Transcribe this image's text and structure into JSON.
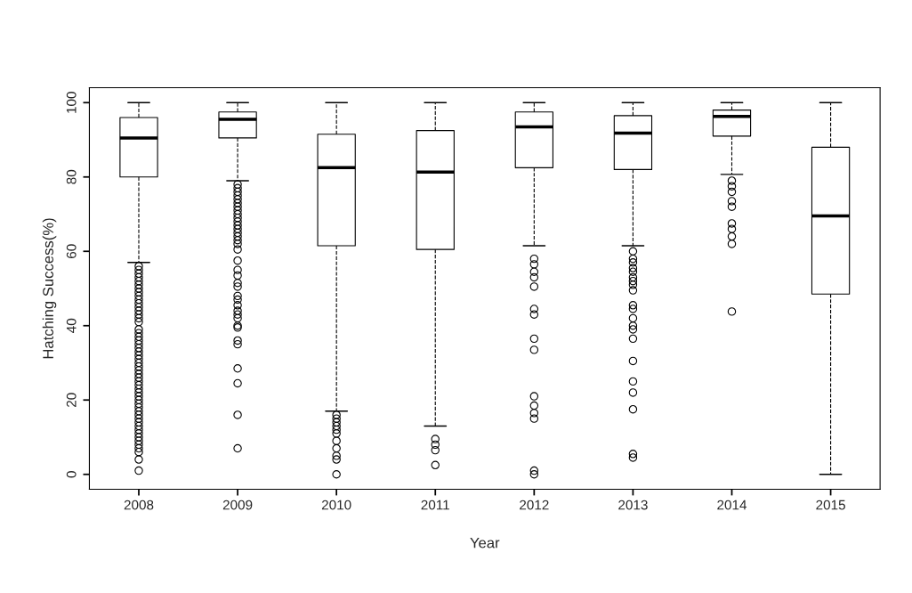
{
  "chart_data": {
    "type": "box",
    "xlabel": "Year",
    "ylabel": "Hatching Success(%)",
    "categories": [
      "2008",
      "2009",
      "2010",
      "2011",
      "2012",
      "2013",
      "2014",
      "2015"
    ],
    "ylim": [
      -4,
      104
    ],
    "yticks": [
      0,
      20,
      40,
      60,
      80,
      100
    ],
    "grid": false,
    "boxes": [
      {
        "low": 57,
        "q1": 80,
        "median": 90.5,
        "q3": 96,
        "high": 100,
        "outliers": [
          56,
          55,
          54,
          53,
          52,
          51,
          50,
          49,
          48,
          47,
          46,
          45,
          44,
          43,
          42,
          41,
          39,
          38,
          37,
          36,
          35,
          34,
          33,
          32,
          31,
          30,
          29,
          28,
          27,
          26,
          25,
          24,
          23,
          22,
          21,
          20,
          19,
          18,
          17,
          16,
          15,
          14,
          13,
          12,
          11,
          10,
          9,
          8,
          7,
          6,
          4,
          1
        ]
      },
      {
        "low": 79,
        "q1": 90.5,
        "median": 95.5,
        "q3": 97.5,
        "high": 100,
        "outliers": [
          78,
          77,
          76,
          75,
          74,
          73,
          72,
          71,
          70,
          69,
          68,
          67,
          66,
          65,
          64,
          63,
          62,
          60.5,
          57.5,
          55,
          53.5,
          51.5,
          50.5,
          48,
          47,
          45.5,
          44,
          43,
          42,
          40,
          39.5,
          36,
          35,
          28.5,
          24.5,
          16,
          7
        ]
      },
      {
        "low": 17,
        "q1": 61.5,
        "median": 82.5,
        "q3": 91.5,
        "high": 100,
        "outliers": [
          16,
          15,
          14,
          13,
          12,
          11,
          9,
          7,
          5,
          4,
          0
        ]
      },
      {
        "low": 13,
        "q1": 60.5,
        "median": 81.3,
        "q3": 92.5,
        "high": 100,
        "outliers": [
          9.5,
          8,
          6.5,
          2.5
        ]
      },
      {
        "low": 61.5,
        "q1": 82.5,
        "median": 93.5,
        "q3": 97.5,
        "high": 100,
        "outliers": [
          58,
          56.5,
          54.5,
          53,
          50.5,
          44.5,
          43,
          36.5,
          33.5,
          21,
          18.5,
          16.5,
          15,
          1,
          0
        ]
      },
      {
        "low": 61.5,
        "q1": 82,
        "median": 91.8,
        "q3": 96.5,
        "high": 100,
        "outliers": [
          60,
          58,
          57,
          55.5,
          54.5,
          53,
          52,
          51,
          49.5,
          45.5,
          44.5,
          42,
          40,
          39,
          36.5,
          30.5,
          25,
          22,
          17.5,
          5.5,
          4.5
        ]
      },
      {
        "low": 80.7,
        "q1": 91,
        "median": 96.3,
        "q3": 98,
        "high": 100,
        "outliers": [
          79,
          77.5,
          76,
          73.5,
          72,
          67.5,
          66,
          64,
          62,
          43.8
        ]
      },
      {
        "low": 0,
        "q1": 48.5,
        "median": 69.5,
        "q3": 88,
        "high": 100
      }
    ]
  }
}
